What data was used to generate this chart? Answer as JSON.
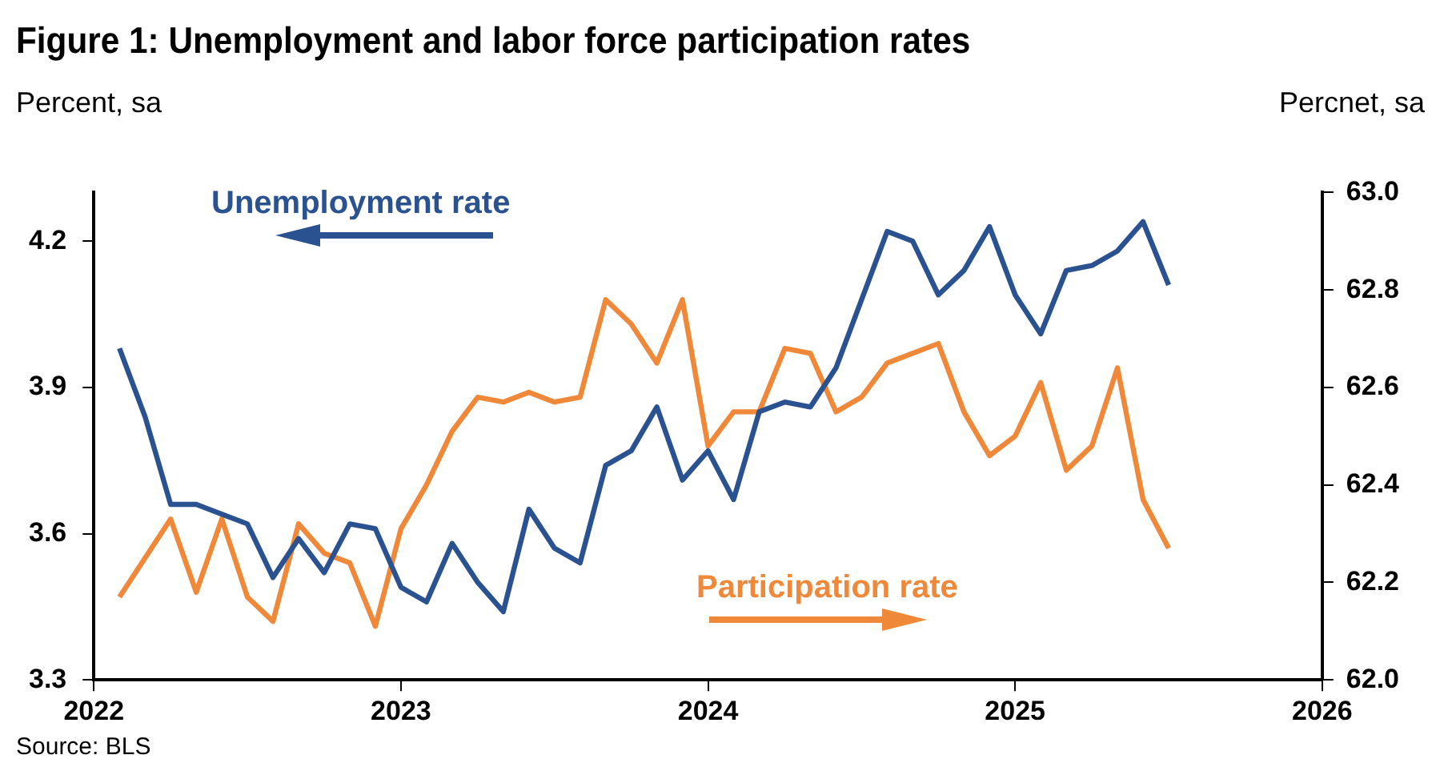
{
  "chart_data": {
    "type": "line",
    "title": "Figure 1: Unemployment and labor force participation rates",
    "ylabel": "Percent, sa",
    "y2label": "Percnet, sa",
    "x": [
      "2022-02",
      "2022-03",
      "2022-04",
      "2022-05",
      "2022-06",
      "2022-07",
      "2022-08",
      "2022-09",
      "2022-10",
      "2022-11",
      "2022-12",
      "2023-01",
      "2023-02",
      "2023-03",
      "2023-04",
      "2023-05",
      "2023-06",
      "2023-07",
      "2023-08",
      "2023-09",
      "2023-10",
      "2023-11",
      "2023-12",
      "2024-01",
      "2024-02",
      "2024-03",
      "2024-04",
      "2024-05",
      "2024-06",
      "2024-07",
      "2024-08",
      "2024-09",
      "2024-10",
      "2024-11",
      "2024-12",
      "2025-01",
      "2025-02",
      "2025-03",
      "2025-04",
      "2025-05",
      "2025-06",
      "2025-07"
    ],
    "series": [
      {
        "name": "Unemployment rate",
        "color": "#2a5190",
        "axis": "y",
        "values": [
          3.98,
          3.84,
          3.66,
          3.66,
          3.64,
          3.62,
          3.51,
          3.59,
          3.52,
          3.62,
          3.61,
          3.49,
          3.46,
          3.58,
          3.5,
          3.44,
          3.65,
          3.57,
          3.54,
          3.74,
          3.77,
          3.86,
          3.71,
          3.77,
          3.67,
          3.85,
          3.87,
          3.86,
          3.94,
          4.08,
          4.22,
          4.2,
          4.09,
          4.14,
          4.23,
          4.09,
          4.01,
          4.14,
          4.15,
          4.18,
          4.24,
          4.11
        ]
      },
      {
        "name": "Participation rate",
        "color": "#f0883a",
        "axis": "y2",
        "values": [
          62.17,
          62.25,
          62.33,
          62.18,
          62.33,
          62.17,
          62.12,
          62.32,
          62.26,
          62.24,
          62.11,
          62.31,
          62.4,
          62.51,
          62.58,
          62.57,
          62.59,
          62.57,
          62.58,
          62.78,
          62.73,
          62.65,
          62.78,
          62.48,
          62.55,
          62.55,
          62.68,
          62.67,
          62.55,
          62.58,
          62.65,
          62.67,
          62.69,
          62.55,
          62.46,
          62.5,
          62.61,
          62.43,
          62.48,
          62.64,
          62.37,
          62.27
        ]
      }
    ],
    "xlim": [
      "2022-01",
      "2026-01"
    ],
    "xticks": [
      {
        "value": "2022-01",
        "label": "2022"
      },
      {
        "value": "2023-01",
        "label": "2023"
      },
      {
        "value": "2024-01",
        "label": "2024"
      },
      {
        "value": "2025-01",
        "label": "2025"
      },
      {
        "value": "2026-01",
        "label": "2026"
      }
    ],
    "ylim": [
      3.3,
      4.3
    ],
    "yticks": [
      3.3,
      3.6,
      3.9,
      4.2
    ],
    "y2lim": [
      62,
      63
    ],
    "y2ticks": [
      {
        "value": 62,
        "label": "62.0"
      },
      62.2,
      62.4,
      62.6,
      62.8,
      {
        "value": 63,
        "label": "63.0"
      }
    ],
    "grid": false,
    "legend": false,
    "marker": "none",
    "line_style": "solid",
    "annotations": [
      "Source: BLS"
    ]
  }
}
